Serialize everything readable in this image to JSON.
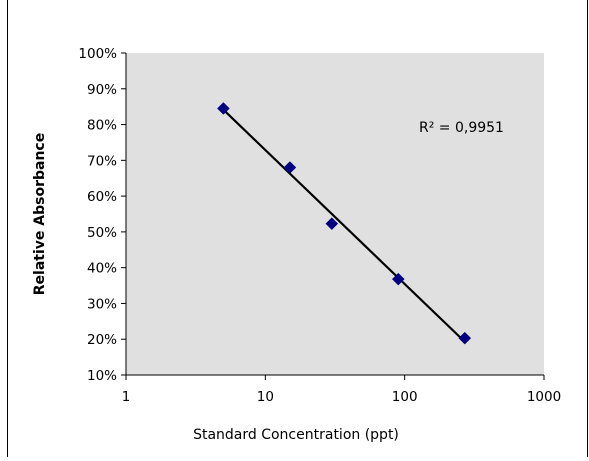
{
  "chart_data": {
    "type": "scatter",
    "title": "",
    "xlabel": "Standard Concentration (ppt)",
    "ylabel": "Relative Absorbance",
    "x_scale": "log",
    "xlim": [
      1,
      1000
    ],
    "ylim": [
      10,
      100
    ],
    "x_ticks": [
      1,
      10,
      100,
      1000
    ],
    "x_tick_labels": [
      "1",
      "10",
      "100",
      "1000"
    ],
    "y_ticks": [
      10,
      20,
      30,
      40,
      50,
      60,
      70,
      80,
      90,
      100
    ],
    "y_tick_labels": [
      "10%",
      "20%",
      "30%",
      "40%",
      "50%",
      "60%",
      "70%",
      "80%",
      "90%",
      "100%"
    ],
    "grid": false,
    "legend": "none",
    "series": [
      {
        "x": [
          5,
          15,
          30,
          90,
          270
        ],
        "y": [
          84.5,
          68,
          52.3,
          36.8,
          20.3
        ],
        "marker": "diamond"
      }
    ],
    "trendline": {
      "type": "logarithmic",
      "x_range": [
        5,
        270
      ]
    },
    "annotations": [
      {
        "text": "R² = 0,9951"
      }
    ],
    "colors": {
      "plot_background": "#e0e0e0",
      "marker_fill": "#000080",
      "trendline": "#000000",
      "axis": "#000000",
      "frame": "#000000"
    }
  }
}
